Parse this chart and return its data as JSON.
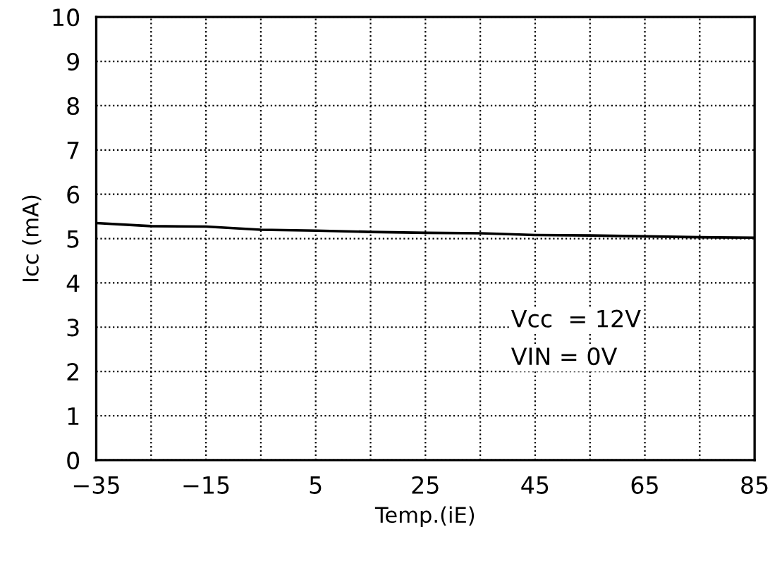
{
  "chart_data": {
    "type": "line",
    "xlabel": "Temp.(iE)",
    "ylabel": "Icc (mA)",
    "x": [
      -35,
      -25,
      -15,
      -5,
      5,
      15,
      25,
      35,
      45,
      55,
      65,
      75,
      85
    ],
    "series": [
      {
        "color": "#000000",
        "values": [
          5.35,
          5.28,
          5.27,
          5.2,
          5.18,
          5.15,
          5.13,
          5.12,
          5.08,
          5.07,
          5.05,
          5.03,
          5.02
        ]
      }
    ],
    "xlim": [
      -35,
      85
    ],
    "xticks": [
      -35,
      {
        "value": -25,
        "label": null
      },
      -15,
      {
        "value": -5,
        "label": null
      },
      5,
      {
        "value": 15,
        "label": null
      },
      25,
      {
        "value": 35,
        "label": null
      },
      45,
      {
        "value": 55,
        "label": null
      },
      65,
      {
        "value": 75,
        "label": null
      },
      85
    ],
    "ylim": [
      0,
      10
    ],
    "yticks": [
      0,
      1,
      2,
      3,
      4,
      5,
      6,
      7,
      8,
      9,
      10
    ],
    "grid": true,
    "marker": "none",
    "line_style": "solid",
    "annotations": [
      "Vcc  = 12V",
      "VIN = 0V"
    ]
  }
}
